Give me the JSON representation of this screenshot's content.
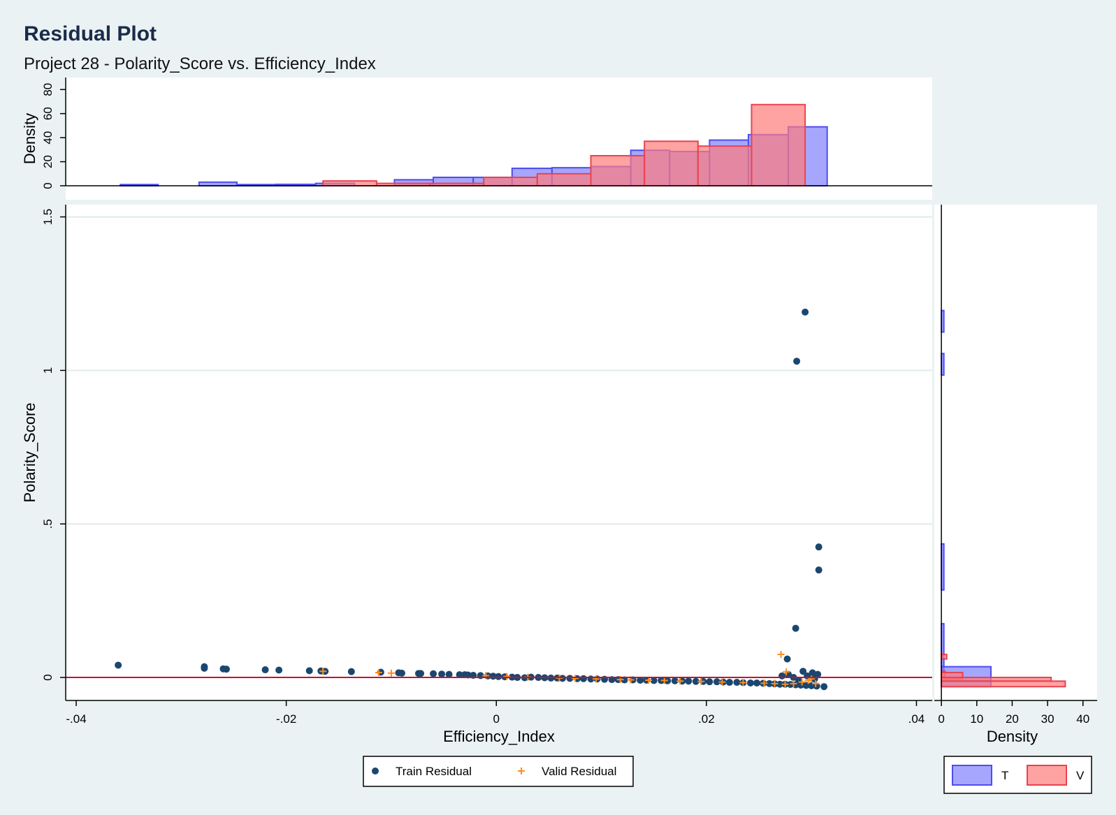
{
  "title": "Residual Plot",
  "subtitle": "Project 28 - Polarity_Score vs. Efficiency_Index",
  "colors": {
    "background": "#eaf2f3",
    "plot_bg": "#ffffff",
    "train_marker": "#1a476f",
    "valid_marker": "#ff8c1a",
    "hist_T_fill": "#8080ff",
    "hist_T_stroke": "#4d4df2",
    "hist_V_fill": "#ff7a7a",
    "hist_V_stroke": "#e8434f",
    "zero_line": "#c8102e",
    "grid": "#e1eaea"
  },
  "chart_data": [
    {
      "type": "scatter",
      "role": "main",
      "xlabel": "Efficiency_Index",
      "ylabel": "Polarity_Score",
      "xlim": [
        -0.041,
        0.0415
      ],
      "ylim": [
        -0.075,
        1.54
      ],
      "xticks": [
        -0.04,
        -0.02,
        0,
        0.02,
        0.04
      ],
      "xtick_labels": [
        "-.04",
        "-.02",
        "0",
        ".02",
        ".04"
      ],
      "yticks": [
        0,
        0.5,
        1,
        1.5
      ],
      "ytick_labels": [
        "0",
        ".5",
        "1",
        "1.5"
      ],
      "grid": true,
      "reference_line_y": 0,
      "legend_placement": "bottom-center",
      "series": [
        {
          "name": "Train Residual",
          "marker": "circle",
          "points": [
            [
              -0.036,
              0.04
            ],
            [
              -0.0278,
              0.035
            ],
            [
              -0.0278,
              0.03
            ],
            [
              -0.026,
              0.028
            ],
            [
              -0.0257,
              0.027
            ],
            [
              -0.022,
              0.025
            ],
            [
              -0.0207,
              0.024
            ],
            [
              -0.0178,
              0.022
            ],
            [
              -0.0167,
              0.021
            ],
            [
              -0.0163,
              0.02
            ],
            [
              -0.0138,
              0.019
            ],
            [
              -0.011,
              0.017
            ],
            [
              -0.0093,
              0.015
            ],
            [
              -0.009,
              0.014
            ],
            [
              -0.0074,
              0.013
            ],
            [
              -0.0072,
              0.013
            ],
            [
              -0.006,
              0.012
            ],
            [
              -0.0052,
              0.011
            ],
            [
              -0.0045,
              0.01
            ],
            [
              -0.0035,
              0.009
            ],
            [
              -0.003,
              0.009
            ],
            [
              -0.0027,
              0.008
            ],
            [
              -0.0022,
              0.007
            ],
            [
              -0.0015,
              0.006
            ],
            [
              -0.0008,
              0.005
            ],
            [
              -0.0003,
              0.004
            ],
            [
              0.0002,
              0.003
            ],
            [
              0.0008,
              0.002
            ],
            [
              0.0015,
              0.001
            ],
            [
              0.002,
              0.0
            ],
            [
              0.0027,
              -0.001
            ],
            [
              0.0033,
              0.001
            ],
            [
              0.004,
              0.0
            ],
            [
              0.0046,
              -0.001
            ],
            [
              0.0052,
              -0.002
            ],
            [
              0.0058,
              -0.002
            ],
            [
              0.0063,
              -0.003
            ],
            [
              0.007,
              -0.003
            ],
            [
              0.0077,
              -0.004
            ],
            [
              0.0083,
              -0.004
            ],
            [
              0.009,
              -0.005
            ],
            [
              0.0096,
              -0.005
            ],
            [
              0.0103,
              -0.006
            ],
            [
              0.011,
              -0.007
            ],
            [
              0.0116,
              -0.007
            ],
            [
              0.0122,
              -0.008
            ],
            [
              0.013,
              -0.008
            ],
            [
              0.0137,
              -0.009
            ],
            [
              0.0143,
              -0.009
            ],
            [
              0.015,
              -0.01
            ],
            [
              0.0157,
              -0.01
            ],
            [
              0.0163,
              -0.011
            ],
            [
              0.017,
              -0.011
            ],
            [
              0.0177,
              -0.012
            ],
            [
              0.0183,
              -0.012
            ],
            [
              0.019,
              -0.013
            ],
            [
              0.0197,
              -0.013
            ],
            [
              0.0203,
              -0.014
            ],
            [
              0.021,
              -0.014
            ],
            [
              0.0216,
              -0.015
            ],
            [
              0.0222,
              -0.016
            ],
            [
              0.0229,
              -0.016
            ],
            [
              0.0235,
              -0.017
            ],
            [
              0.0242,
              -0.018
            ],
            [
              0.0248,
              -0.018
            ],
            [
              0.0254,
              -0.019
            ],
            [
              0.026,
              -0.02
            ],
            [
              0.0265,
              -0.021
            ],
            [
              0.027,
              -0.022
            ],
            [
              0.0275,
              -0.022
            ],
            [
              0.028,
              -0.023
            ],
            [
              0.0285,
              -0.024
            ],
            [
              0.029,
              -0.025
            ],
            [
              0.0295,
              -0.026
            ],
            [
              0.03,
              -0.027
            ],
            [
              0.0305,
              -0.028
            ],
            [
              0.0312,
              -0.03
            ],
            [
              0.0272,
              0.005
            ],
            [
              0.0278,
              0.01
            ],
            [
              0.0283,
              0.0
            ],
            [
              0.0288,
              -0.01
            ],
            [
              0.0292,
              0.02
            ],
            [
              0.0296,
              0.005
            ],
            [
              0.0301,
              0.015
            ],
            [
              0.0303,
              -0.005
            ],
            [
              0.0306,
              0.01
            ],
            [
              0.0277,
              0.06
            ],
            [
              0.0285,
              0.16
            ],
            [
              0.0307,
              0.35
            ],
            [
              0.0307,
              0.425
            ],
            [
              0.0286,
              1.03
            ],
            [
              0.0294,
              1.19
            ]
          ]
        },
        {
          "name": "Valid Residual",
          "marker": "plus",
          "points": [
            [
              -0.0165,
              0.02
            ],
            [
              -0.0112,
              0.016
            ],
            [
              -0.01,
              0.014
            ],
            [
              -0.001,
              0.006
            ],
            [
              0.001,
              0.003
            ],
            [
              0.003,
              0.001
            ],
            [
              0.006,
              -0.002
            ],
            [
              0.0075,
              -0.003
            ],
            [
              0.0095,
              -0.005
            ],
            [
              0.0118,
              -0.007
            ],
            [
              0.0128,
              -0.008
            ],
            [
              0.0145,
              -0.009
            ],
            [
              0.016,
              -0.01
            ],
            [
              0.0175,
              -0.012
            ],
            [
              0.0195,
              -0.013
            ],
            [
              0.0215,
              -0.015
            ],
            [
              0.0235,
              -0.017
            ],
            [
              0.0255,
              -0.019
            ],
            [
              0.0265,
              -0.02
            ],
            [
              0.0275,
              -0.022
            ],
            [
              0.0283,
              -0.02
            ],
            [
              0.0291,
              -0.015
            ],
            [
              0.0297,
              -0.01
            ],
            [
              0.03,
              -0.005
            ],
            [
              0.0304,
              -0.02
            ],
            [
              0.0276,
              0.018
            ],
            [
              0.0271,
              0.075
            ]
          ]
        }
      ]
    },
    {
      "type": "histogram",
      "role": "top-marginal",
      "ylabel": "Density",
      "ylim": [
        0,
        90
      ],
      "yticks": [
        0,
        20,
        40,
        60,
        80
      ],
      "ytick_labels": [
        "0",
        "20",
        "40",
        "60",
        "80"
      ],
      "series": [
        {
          "name": "T",
          "bins": [
            [
              -0.0358,
              -0.0322,
              1
            ],
            [
              -0.0283,
              -0.0247,
              3
            ],
            [
              -0.0247,
              -0.021,
              1
            ],
            [
              -0.021,
              -0.0172,
              1.2
            ],
            [
              -0.0172,
              -0.0135,
              2
            ],
            [
              -0.0097,
              -0.006,
              5
            ],
            [
              -0.006,
              -0.0022,
              7
            ],
            [
              -0.0022,
              0.0015,
              7
            ],
            [
              0.0015,
              0.0053,
              14.5
            ],
            [
              0.0053,
              0.009,
              15
            ],
            [
              0.009,
              0.0128,
              16
            ],
            [
              0.0128,
              0.0165,
              29.5
            ],
            [
              0.0165,
              0.0203,
              28.5
            ],
            [
              0.0203,
              0.024,
              38
            ],
            [
              0.024,
              0.0278,
              42.5
            ],
            [
              0.0278,
              0.0315,
              49
            ]
          ]
        },
        {
          "name": "V",
          "bins": [
            [
              -0.0165,
              -0.0114,
              4
            ],
            [
              -0.0114,
              -0.0063,
              2
            ],
            [
              -0.0063,
              -0.0012,
              2
            ],
            [
              -0.0012,
              0.0039,
              7
            ],
            [
              0.0039,
              0.009,
              10
            ],
            [
              0.009,
              0.0141,
              25
            ],
            [
              0.0141,
              0.0192,
              37
            ],
            [
              0.0192,
              0.0243,
              33
            ],
            [
              0.0243,
              0.0294,
              67.5
            ]
          ]
        }
      ]
    },
    {
      "type": "histogram",
      "role": "right-marginal",
      "orientation": "horizontal",
      "xlabel": "Density",
      "xlim": [
        -2,
        44
      ],
      "xticks": [
        0,
        10,
        20,
        30,
        40
      ],
      "xtick_labels": [
        "0",
        "10",
        "20",
        "30",
        "40"
      ],
      "series": [
        {
          "name": "T",
          "bins": [
            [
              1.125,
              1.195,
              0.7
            ],
            [
              0.985,
              1.055,
              0.7
            ],
            [
              0.285,
              0.435,
              0.7
            ],
            [
              0.0,
              0.175,
              0.7
            ],
            [
              -0.03,
              0.035,
              14
            ]
          ]
        },
        {
          "name": "V",
          "bins": [
            [
              0.06,
              0.075,
              1.5
            ],
            [
              0.0,
              0.02,
              1
            ],
            [
              -0.005,
              0.016,
              6
            ],
            [
              -0.012,
              0.0,
              31
            ],
            [
              -0.03,
              -0.012,
              35
            ]
          ]
        }
      ]
    }
  ],
  "legends": {
    "scatter": [
      "Train Residual",
      "Valid Residual"
    ],
    "hist": [
      "T",
      "V"
    ]
  }
}
